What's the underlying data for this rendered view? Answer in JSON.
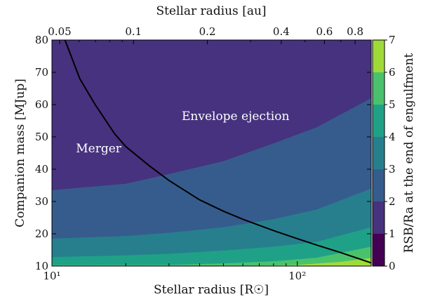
{
  "chart_data": {
    "type": "heatmap",
    "xlabel": "Stellar radius [R☉]",
    "ylabel": "Companion mass [MJup]",
    "top_xlabel": "Stellar radius [au]",
    "colorbar_label": "RSB/Ra at the end of engulfment",
    "x_scale": "log",
    "xlim": [
      10,
      200
    ],
    "ylim": [
      10,
      80
    ],
    "colorbar_range": [
      0,
      7
    ],
    "x_ticks_major": [
      {
        "value": 10,
        "label": "10¹"
      },
      {
        "value": 100,
        "label": "10²"
      }
    ],
    "y_ticks": [
      10,
      20,
      30,
      40,
      50,
      60,
      70,
      80
    ],
    "top_ticks_au": [
      {
        "value": 0.05,
        "label": "0.05"
      },
      {
        "value": 0.1,
        "label": "0.1"
      },
      {
        "value": 0.2,
        "label": "0.2"
      },
      {
        "value": 0.4,
        "label": "0.4"
      },
      {
        "value": 0.6,
        "label": "0.6"
      },
      {
        "value": 0.8,
        "label": "0.8"
      }
    ],
    "colorbar_ticks": [
      0,
      1,
      2,
      3,
      4,
      5,
      6,
      7
    ],
    "colors": [
      "#440154",
      "#46327e",
      "#365c8d",
      "#277f8e",
      "#1fa187",
      "#4ac16d",
      "#a0da39",
      "#fde725"
    ],
    "levels": [
      {
        "range": [
          1,
          2
        ],
        "color": "#46327e"
      },
      {
        "range": [
          2,
          3
        ],
        "color": "#365c8d",
        "boundary": [
          [
            10,
            33.5
          ],
          [
            20,
            35.5
          ],
          [
            30,
            38.5
          ],
          [
            50,
            42.5
          ],
          [
            80,
            48
          ],
          [
            120,
            53
          ],
          [
            200,
            62
          ]
        ]
      },
      {
        "range": [
          3,
          4
        ],
        "color": "#277f8e",
        "boundary": [
          [
            10,
            18.5
          ],
          [
            20,
            19.3
          ],
          [
            30,
            20.3
          ],
          [
            50,
            22
          ],
          [
            80,
            24.5
          ],
          [
            120,
            27.5
          ],
          [
            200,
            34
          ]
        ]
      },
      {
        "range": [
          4,
          5
        ],
        "color": "#1fa187",
        "boundary": [
          [
            10,
            12.8
          ],
          [
            20,
            13.3
          ],
          [
            30,
            13.8
          ],
          [
            50,
            14.8
          ],
          [
            80,
            16
          ],
          [
            120,
            17.5
          ],
          [
            200,
            22
          ]
        ]
      },
      {
        "range": [
          5,
          6
        ],
        "color": "#4ac16d",
        "boundary": [
          [
            10,
            10.3
          ],
          [
            30,
            10.4
          ],
          [
            50,
            10.8
          ],
          [
            80,
            11.5
          ],
          [
            120,
            12.6
          ],
          [
            200,
            16
          ]
        ]
      },
      {
        "range": [
          6,
          7
        ],
        "color": "#a0da39",
        "boundary": [
          [
            60,
            10
          ],
          [
            100,
            10.4
          ],
          [
            150,
            11.3
          ],
          [
            200,
            12.5
          ]
        ]
      }
    ],
    "separatrix": [
      [
        11.3,
        80
      ],
      [
        13,
        68
      ],
      [
        15,
        60
      ],
      [
        18,
        51
      ],
      [
        20,
        47
      ],
      [
        25,
        41
      ],
      [
        30,
        36.5
      ],
      [
        40,
        30.5
      ],
      [
        50,
        27
      ],
      [
        60,
        24.5
      ],
      [
        80,
        21
      ],
      [
        100,
        18.5
      ],
      [
        120,
        16.5
      ],
      [
        150,
        14.2
      ],
      [
        200,
        11
      ]
    ],
    "annotations": [
      {
        "text": "Merger",
        "x": 15.5,
        "y": 46.5
      },
      {
        "text": "Envelope ejection",
        "x": 56,
        "y": 56.5
      }
    ]
  }
}
